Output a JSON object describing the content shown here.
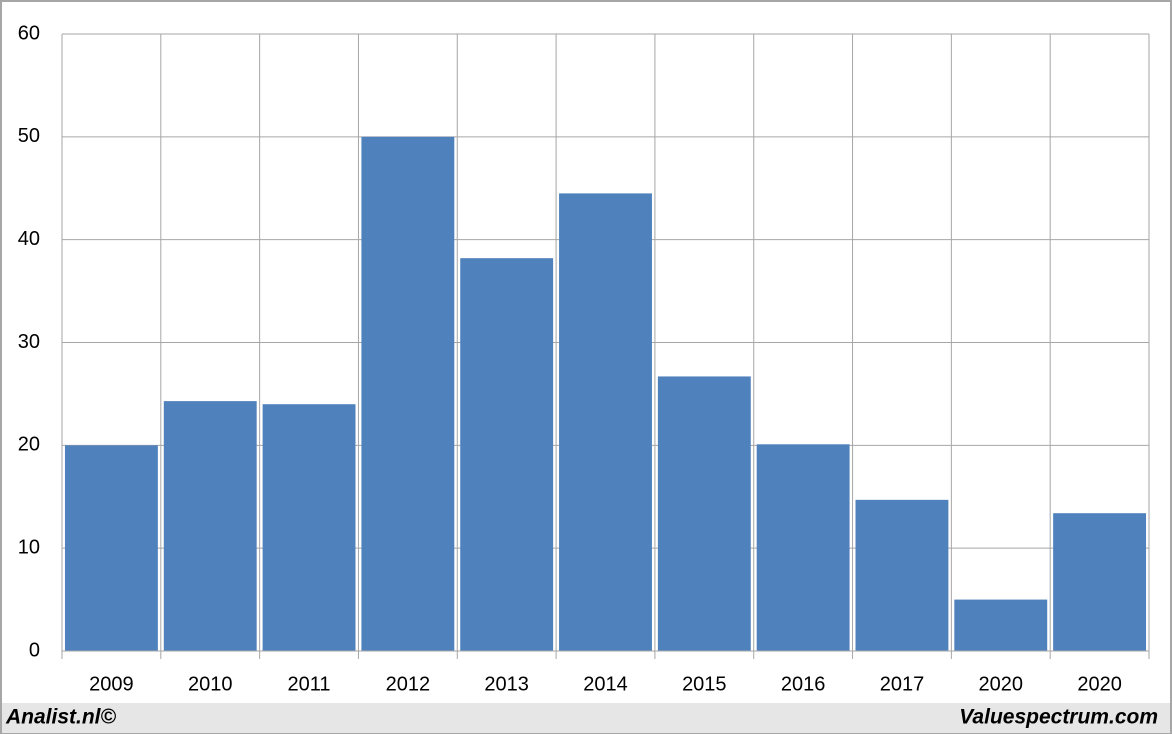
{
  "chart_data": {
    "type": "bar",
    "categories": [
      "2009",
      "2010",
      "2011",
      "2012",
      "2013",
      "2014",
      "2015",
      "2016",
      "2017",
      "2020",
      "2020"
    ],
    "values": [
      20.0,
      24.3,
      24.0,
      50.0,
      38.2,
      44.5,
      26.7,
      20.1,
      14.7,
      5.0,
      13.4
    ],
    "color": "#4f81bd",
    "ylim": [
      0,
      60
    ],
    "yticks": [
      0,
      10,
      20,
      30,
      40,
      50,
      60
    ],
    "grid": true
  },
  "footer": {
    "left": "Analist.nl©",
    "right": "Valuespectrum.com"
  }
}
